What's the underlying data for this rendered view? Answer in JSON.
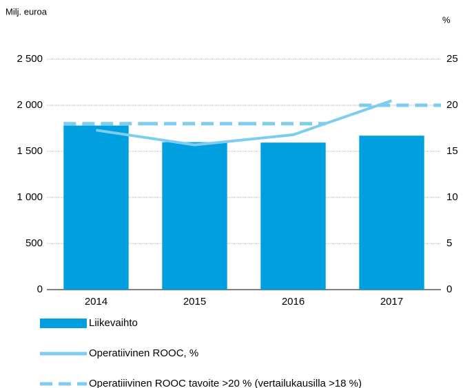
{
  "chart_data": {
    "type": "bar",
    "y_axis_label": "Milj. euroa",
    "y2_axis_label": "%",
    "categories": [
      "2014",
      "2015",
      "2016",
      "2017"
    ],
    "series": [
      {
        "name": "Liikevaihto",
        "type": "bar",
        "color": "#009fdf",
        "values": [
          1780,
          1600,
          1595,
          1670
        ]
      },
      {
        "name": "Operatiivinen ROOC, %",
        "type": "line",
        "axis": "y2",
        "color": "#7fcdee",
        "values": [
          17.3,
          15.7,
          16.8,
          20.5
        ]
      },
      {
        "name": "Operatiiivinen ROOC tavoite >20 % (vertailukausilla >18 %)",
        "type": "line",
        "style": "dashed",
        "axis": "y2",
        "color": "#7fcdee",
        "values": [
          18,
          18,
          18,
          20
        ]
      }
    ],
    "ylim": [
      0,
      2500
    ],
    "yticks": [
      0,
      500,
      {
        "value": 1000,
        "label": "1 000"
      },
      {
        "value": 1500,
        "label": "1 500"
      },
      {
        "value": 2000,
        "label": "2 000"
      },
      {
        "value": 2500,
        "label": "2 500"
      }
    ],
    "y2lim": [
      0,
      25
    ],
    "y2ticks": [
      0,
      5,
      10,
      15,
      20,
      25
    ],
    "grid": true
  }
}
